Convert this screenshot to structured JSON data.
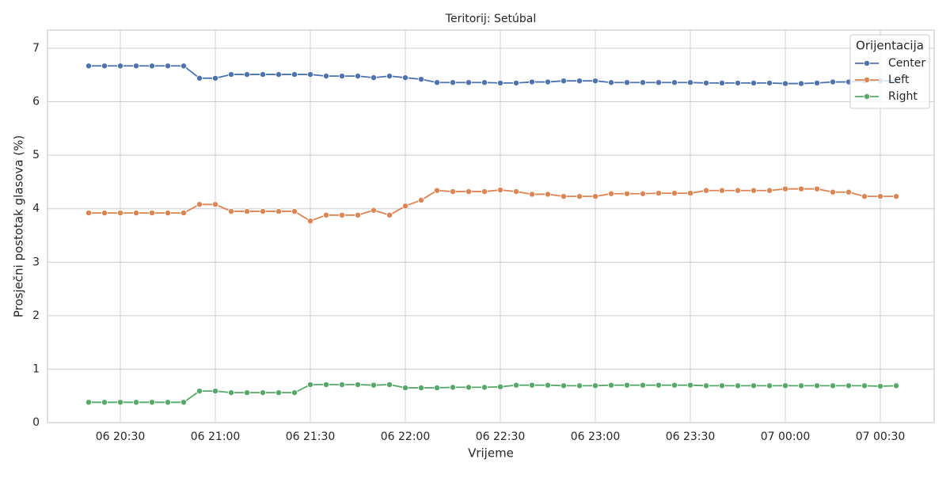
{
  "chart_data": {
    "type": "line",
    "title": "Teritorij: Setúbal",
    "xlabel": "Vrijeme",
    "ylabel": "Prosječni postotak glasova (%)",
    "x": [
      "06 20:20",
      "06 20:25",
      "06 20:30",
      "06 20:35",
      "06 20:40",
      "06 20:45",
      "06 20:50",
      "06 20:55",
      "06 21:00",
      "06 21:05",
      "06 21:10",
      "06 21:15",
      "06 21:20",
      "06 21:25",
      "06 21:30",
      "06 21:35",
      "06 21:40",
      "06 21:45",
      "06 21:50",
      "06 21:55",
      "06 22:00",
      "06 22:05",
      "06 22:10",
      "06 22:15",
      "06 22:20",
      "06 22:25",
      "06 22:30",
      "06 22:35",
      "06 22:40",
      "06 22:45",
      "06 22:50",
      "06 22:55",
      "06 23:00",
      "06 23:05",
      "06 23:10",
      "06 23:15",
      "06 23:20",
      "06 23:25",
      "06 23:30",
      "06 23:35",
      "06 23:40",
      "06 23:45",
      "06 23:50",
      "06 23:55",
      "07 00:00",
      "07 00:05",
      "07 00:10",
      "07 00:15",
      "07 00:20",
      "07 00:25",
      "07 00:30",
      "07 00:35"
    ],
    "series": [
      {
        "name": "Center",
        "color": "#4c72b0",
        "values": [
          6.67,
          6.67,
          6.67,
          6.67,
          6.67,
          6.67,
          6.67,
          6.44,
          6.44,
          6.51,
          6.51,
          6.51,
          6.51,
          6.51,
          6.51,
          6.48,
          6.48,
          6.48,
          6.45,
          6.48,
          6.45,
          6.42,
          6.36,
          6.36,
          6.36,
          6.36,
          6.35,
          6.35,
          6.37,
          6.37,
          6.39,
          6.39,
          6.39,
          6.36,
          6.36,
          6.36,
          6.36,
          6.36,
          6.36,
          6.35,
          6.35,
          6.35,
          6.35,
          6.35,
          6.34,
          6.34,
          6.35,
          6.37,
          6.37,
          6.39,
          6.39,
          6.39
        ]
      },
      {
        "name": "Left",
        "color": "#dd8452",
        "values": [
          3.92,
          3.92,
          3.92,
          3.92,
          3.92,
          3.92,
          3.92,
          4.08,
          4.08,
          3.95,
          3.95,
          3.95,
          3.95,
          3.95,
          3.77,
          3.88,
          3.88,
          3.88,
          3.97,
          3.88,
          4.05,
          4.16,
          4.34,
          4.32,
          4.32,
          4.32,
          4.35,
          4.32,
          4.27,
          4.27,
          4.23,
          4.23,
          4.23,
          4.28,
          4.28,
          4.28,
          4.29,
          4.29,
          4.29,
          4.34,
          4.34,
          4.34,
          4.34,
          4.34,
          4.37,
          4.37,
          4.37,
          4.31,
          4.31,
          4.23,
          4.23,
          4.23
        ]
      },
      {
        "name": "Right",
        "color": "#55a868",
        "values": [
          0.38,
          0.38,
          0.38,
          0.38,
          0.38,
          0.38,
          0.38,
          0.59,
          0.59,
          0.56,
          0.56,
          0.56,
          0.56,
          0.56,
          0.71,
          0.71,
          0.71,
          0.71,
          0.7,
          0.71,
          0.65,
          0.65,
          0.65,
          0.66,
          0.66,
          0.66,
          0.67,
          0.7,
          0.7,
          0.7,
          0.69,
          0.69,
          0.69,
          0.7,
          0.7,
          0.7,
          0.7,
          0.7,
          0.7,
          0.69,
          0.69,
          0.69,
          0.69,
          0.69,
          0.69,
          0.69,
          0.69,
          0.69,
          0.69,
          0.69,
          0.68,
          0.69
        ]
      }
    ],
    "xlim": [
      "06 20:07",
      "07 00:47"
    ],
    "xticks": [
      "06 20:30",
      "06 21:00",
      "06 21:30",
      "06 22:00",
      "06 22:30",
      "06 23:00",
      "06 23:30",
      "07 00:00",
      "07 00:30"
    ],
    "ylim": [
      0,
      7.34
    ],
    "yticks": [
      0,
      1,
      2,
      3,
      4,
      5,
      6,
      7
    ],
    "grid": true,
    "legend_title": "Orijentacija",
    "legend_position": "upper right"
  }
}
